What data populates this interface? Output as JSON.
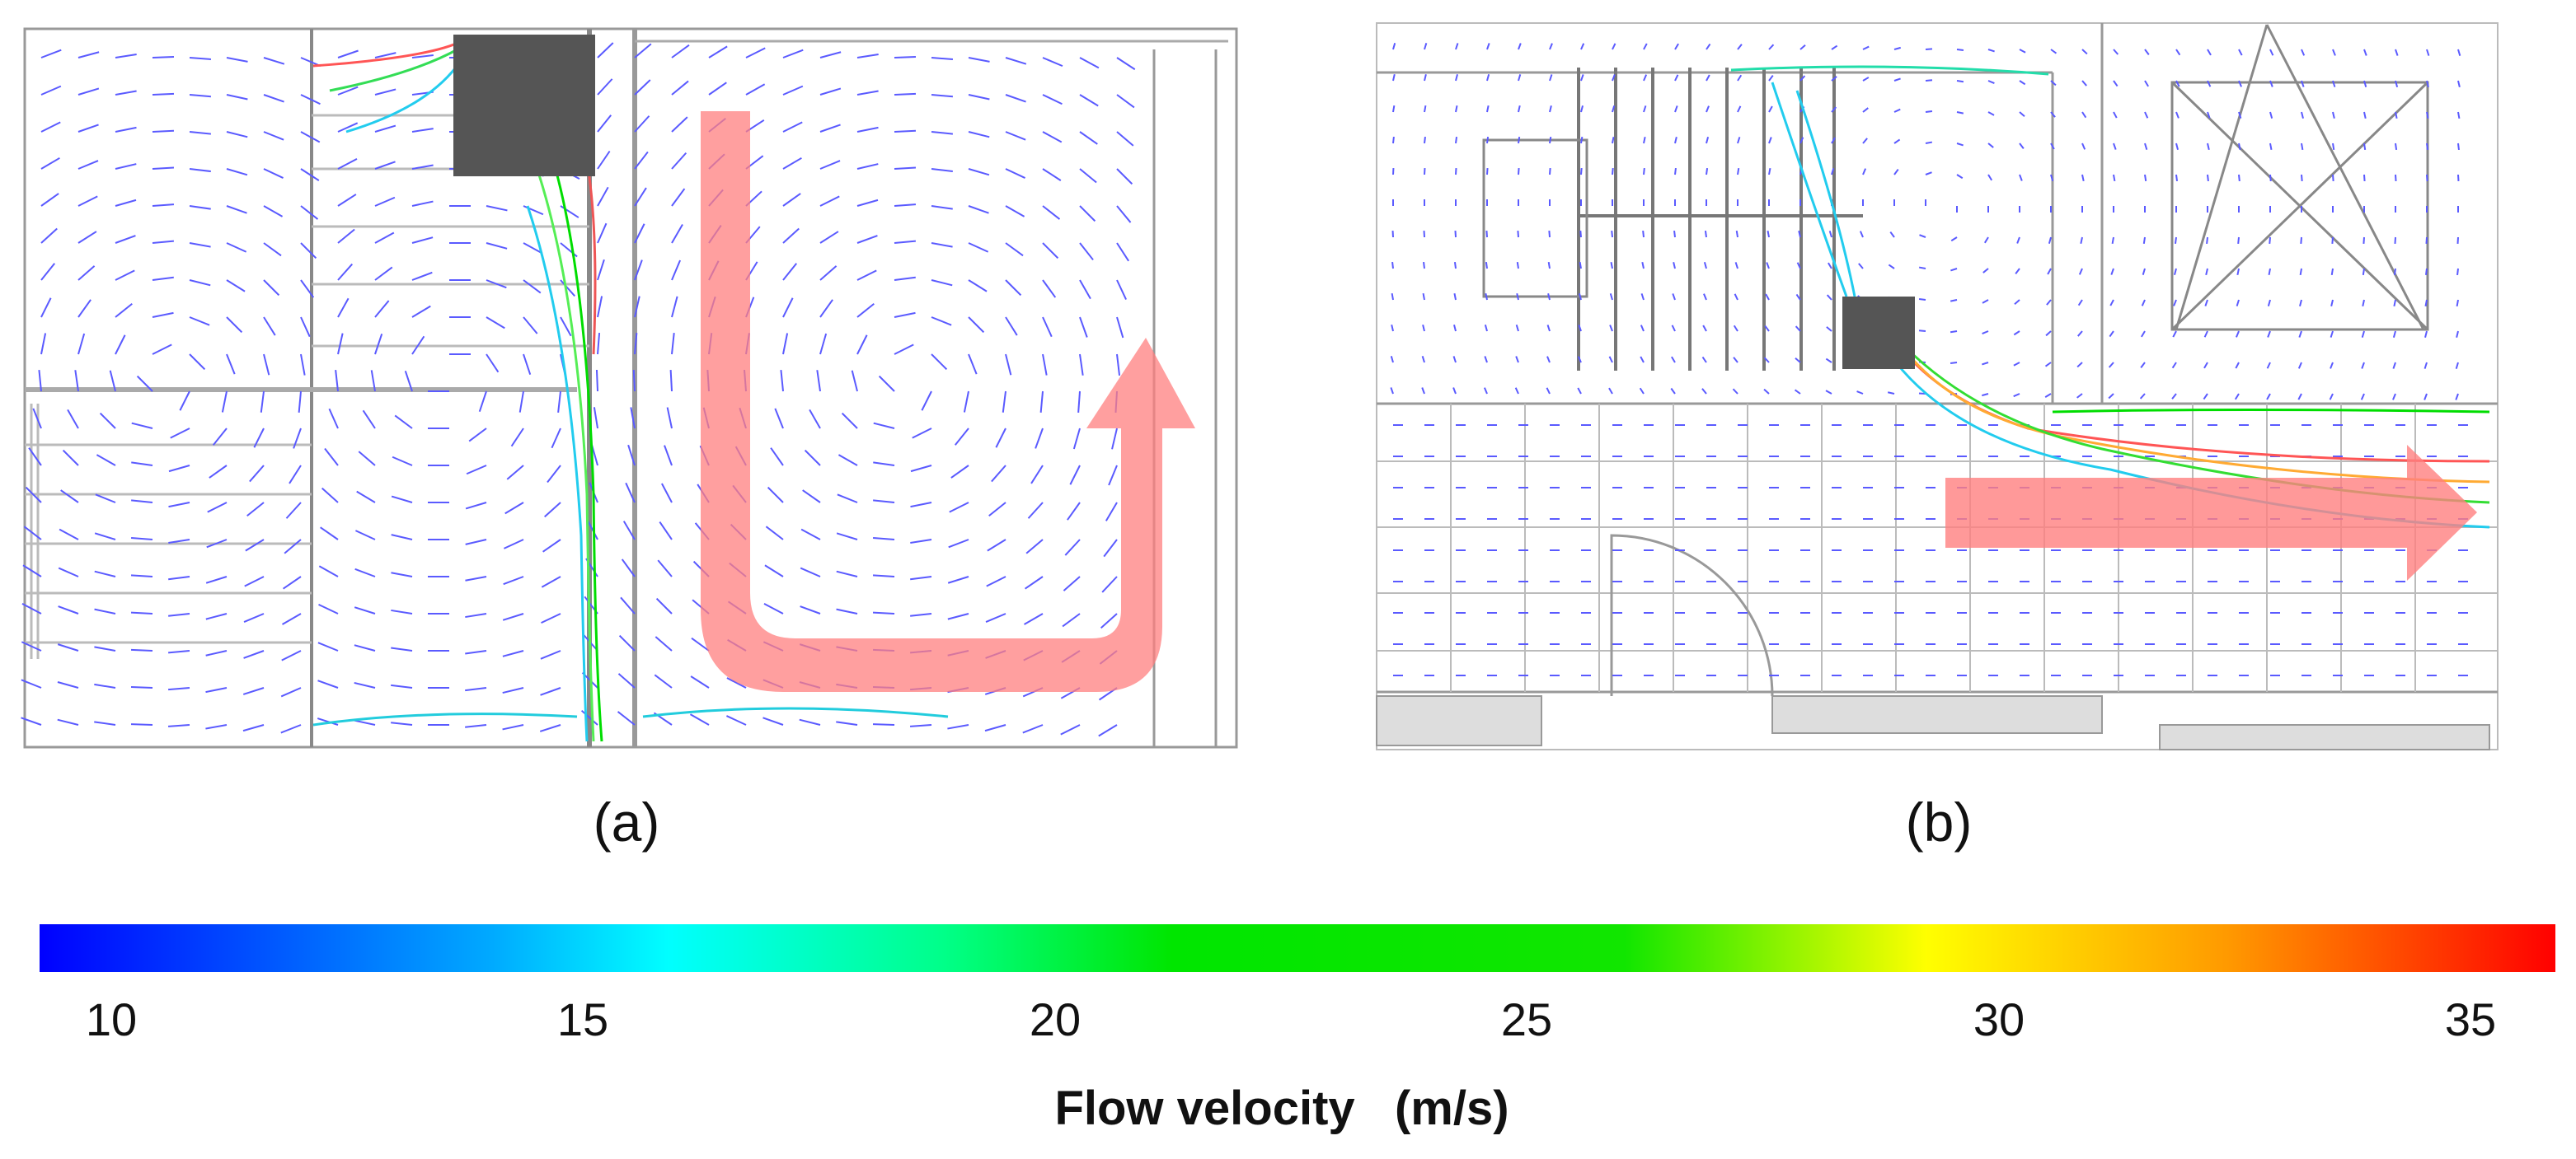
{
  "panels": [
    {
      "label": "(a)"
    },
    {
      "label": "(b)"
    }
  ],
  "colorbar": {
    "title": "Flow velocity   (m/s)",
    "ticks": [
      "10",
      "15",
      "20",
      "25",
      "30",
      "35"
    ],
    "min": 10,
    "max": 36,
    "colors": [
      "#0000ff",
      "#00c8ff",
      "#00ffff",
      "#00ff66",
      "#00e600",
      "#22e600",
      "#ffff00",
      "#ff9900",
      "#ff0000"
    ]
  },
  "colors": {
    "obstacle": "#555555",
    "arrow": "#ff7f7f",
    "wall": "#888888",
    "vector_low": "#5555ff"
  }
}
